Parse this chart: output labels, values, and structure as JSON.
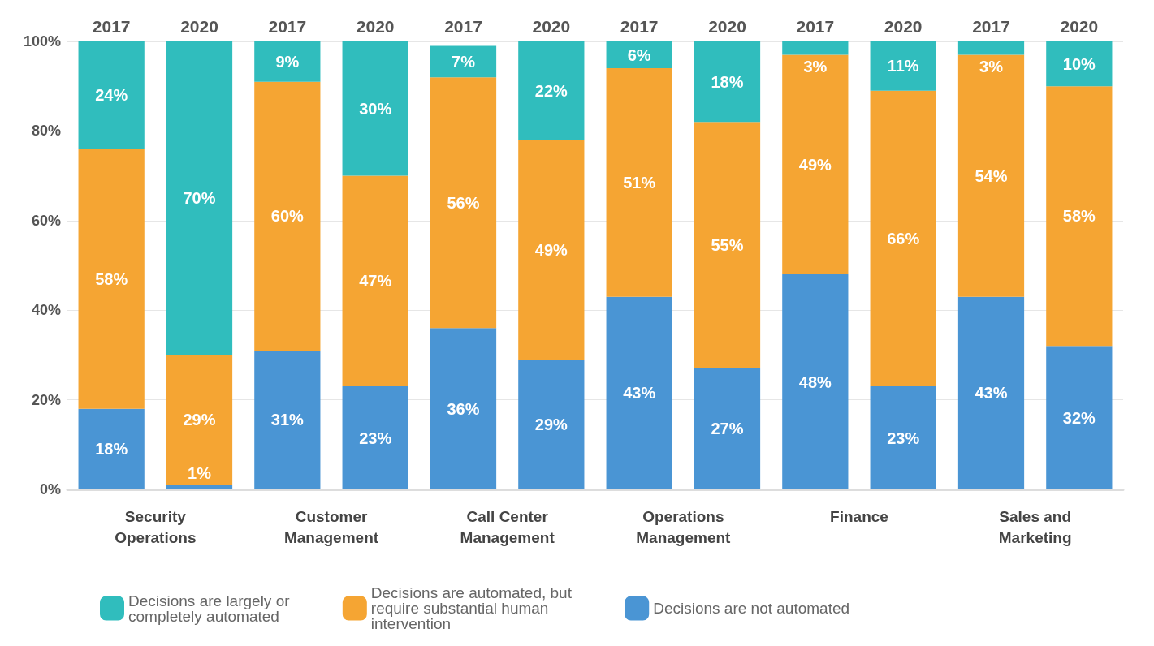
{
  "chart_data": {
    "type": "bar",
    "stacked": true,
    "categories": [
      "2017",
      "2020",
      "2017",
      "2020",
      "2017",
      "2020",
      "2017",
      "2020",
      "2017",
      "2020",
      "2017",
      "2020"
    ],
    "annotations": [
      "Security\nOperations",
      "Customer\nManagement",
      "Call Center\nManagement",
      "Operations\nManagement",
      "Finance",
      "Sales and\nMarketing"
    ],
    "series": [
      {
        "name": "Decisions are not automated",
        "color": "#4a95d4",
        "values": [
          18,
          1,
          31,
          23,
          36,
          29,
          43,
          27,
          48,
          23,
          43,
          32
        ],
        "value_labels": [
          "18%",
          "1%",
          "31%",
          "23%",
          "36%",
          "29%",
          "43%",
          "27%",
          "48%",
          "23%",
          "43%",
          "32%"
        ]
      },
      {
        "name": "Decisions are automated, but require substantial human intervention",
        "color": "#f5a533",
        "values": [
          58,
          29,
          60,
          47,
          56,
          49,
          51,
          55,
          49,
          66,
          54,
          58
        ],
        "value_labels": [
          "58%",
          "29%",
          "60%",
          "47%",
          "56%",
          "49%",
          "51%",
          "55%",
          "49%",
          "66%",
          "54%",
          "58%"
        ]
      },
      {
        "name": "Decisions are largely or completely automated",
        "color": "#30bdbd",
        "values": [
          24,
          70,
          9,
          30,
          7,
          22,
          6,
          18,
          3,
          11,
          3,
          10
        ],
        "value_labels": [
          "24%",
          "70%",
          "9%",
          "30%",
          "7%",
          "22%",
          "6%",
          "18%",
          "3%",
          "11%",
          "3%",
          "10%"
        ]
      }
    ],
    "ylim": [
      0,
      100
    ],
    "yticks": [
      {
        "value": 0,
        "label": "0%"
      },
      {
        "value": 20,
        "label": "20%"
      },
      {
        "value": 40,
        "label": "40%"
      },
      {
        "value": 60,
        "label": "60%"
      },
      {
        "value": 80,
        "label": "80%"
      },
      {
        "value": 100,
        "label": "100%"
      }
    ],
    "grid": "y",
    "legend": "bottom"
  }
}
